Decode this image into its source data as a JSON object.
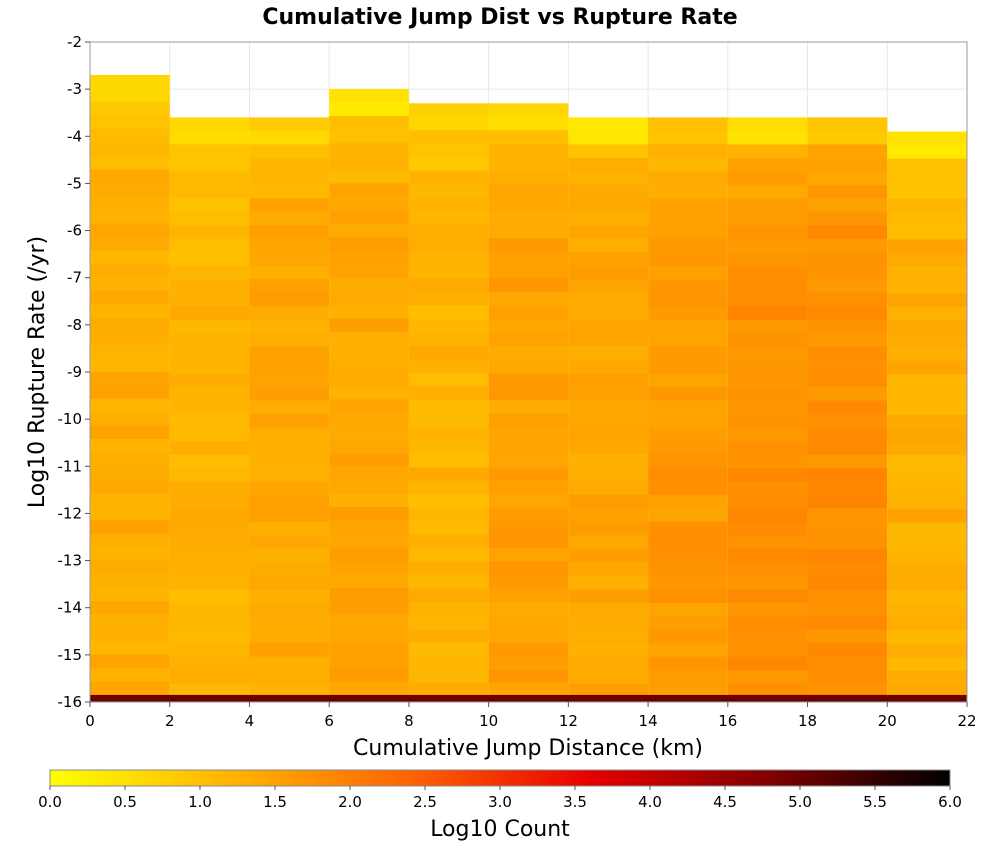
{
  "chart_data": {
    "type": "heatmap",
    "title": "Cumulative Jump Dist vs Rupture Rate",
    "xlabel": "Cumulative Jump Distance (km)",
    "ylabel": "Log10 Rupture Rate (/yr)",
    "xlim": [
      0,
      22
    ],
    "ylim": [
      -16,
      -2
    ],
    "xticks": [
      "0",
      "2",
      "4",
      "6",
      "8",
      "10",
      "12",
      "14",
      "16",
      "18",
      "20",
      "22"
    ],
    "yticks": [
      "-2",
      "-3",
      "-4",
      "-5",
      "-6",
      "-7",
      "-8",
      "-9",
      "-10",
      "-11",
      "-12",
      "-13",
      "-14",
      "-15",
      "-16"
    ],
    "x_bin_edges": [
      0,
      2,
      4,
      6,
      8,
      10,
      12,
      14,
      16,
      18,
      20,
      22
    ],
    "y_bin_size": 0.286,
    "columns": [
      {
        "x_range": [
          0,
          2
        ],
        "y_max": -2.7,
        "value_top": 0.5,
        "value_body": 1.3
      },
      {
        "x_range": [
          2,
          4
        ],
        "y_max": -3.6,
        "value_top": 0.5,
        "value_body": 1.2
      },
      {
        "x_range": [
          4,
          6
        ],
        "y_max": -3.6,
        "value_top": 0.6,
        "value_body": 1.4
      },
      {
        "x_range": [
          6,
          8
        ],
        "y_max": -3.0,
        "value_top": 0.3,
        "value_body": 1.4
      },
      {
        "x_range": [
          8,
          10
        ],
        "y_max": -3.3,
        "value_top": 0.5,
        "value_body": 1.2
      },
      {
        "x_range": [
          10,
          12
        ],
        "y_max": -3.3,
        "value_top": 0.5,
        "value_body": 1.5
      },
      {
        "x_range": [
          12,
          14
        ],
        "y_max": -3.6,
        "value_top": 0.3,
        "value_body": 1.4
      },
      {
        "x_range": [
          14,
          16
        ],
        "y_max": -3.6,
        "value_top": 0.8,
        "value_body": 1.6
      },
      {
        "x_range": [
          16,
          18
        ],
        "y_max": -3.6,
        "value_top": 0.3,
        "value_body": 1.75
      },
      {
        "x_range": [
          18,
          20
        ],
        "y_max": -3.6,
        "value_top": 0.8,
        "value_body": 1.75
      },
      {
        "x_range": [
          20,
          22
        ],
        "y_max": -3.9,
        "value_top": 0.3,
        "value_body": 1.3
      }
    ],
    "bottom_row": {
      "y_range": [
        -16,
        -15.85
      ],
      "value": 5.0
    },
    "colorbar": {
      "label": "Log10 Count",
      "min": 0.0,
      "max": 6.0,
      "ticks": [
        "0.0",
        "0.5",
        "1.0",
        "1.5",
        "2.0",
        "2.5",
        "3.0",
        "3.5",
        "4.0",
        "4.5",
        "5.0",
        "5.5",
        "6.0"
      ],
      "colors": [
        "#ffff00",
        "#ffb400",
        "#ff6400",
        "#e60000",
        "#800000",
        "#000000"
      ]
    }
  }
}
